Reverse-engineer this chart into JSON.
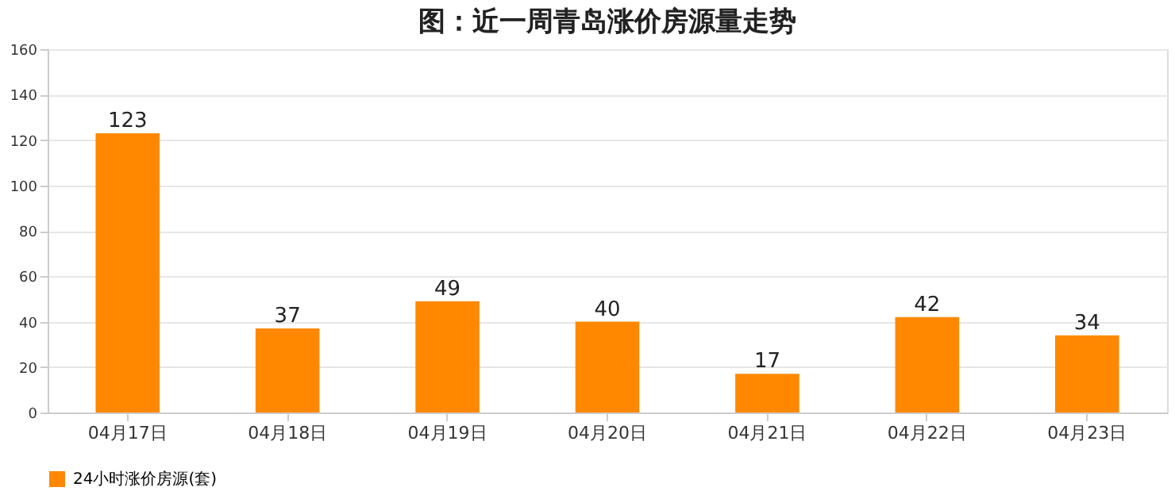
{
  "chart_data": {
    "type": "bar",
    "title": "图：近一周青岛涨价房源量走势",
    "categories": [
      "04月17日",
      "04月18日",
      "04月19日",
      "04月20日",
      "04月21日",
      "04月22日",
      "04月23日"
    ],
    "series": [
      {
        "name": "24小时涨价房源(套)",
        "color": "#ff8800",
        "values": [
          123,
          37,
          49,
          40,
          17,
          42,
          34
        ]
      }
    ],
    "ylim": [
      0,
      160
    ],
    "yticks": [
      0,
      20,
      40,
      60,
      80,
      100,
      120,
      140,
      160
    ],
    "grid": "y",
    "legend": "bottom",
    "data_labels": true
  }
}
